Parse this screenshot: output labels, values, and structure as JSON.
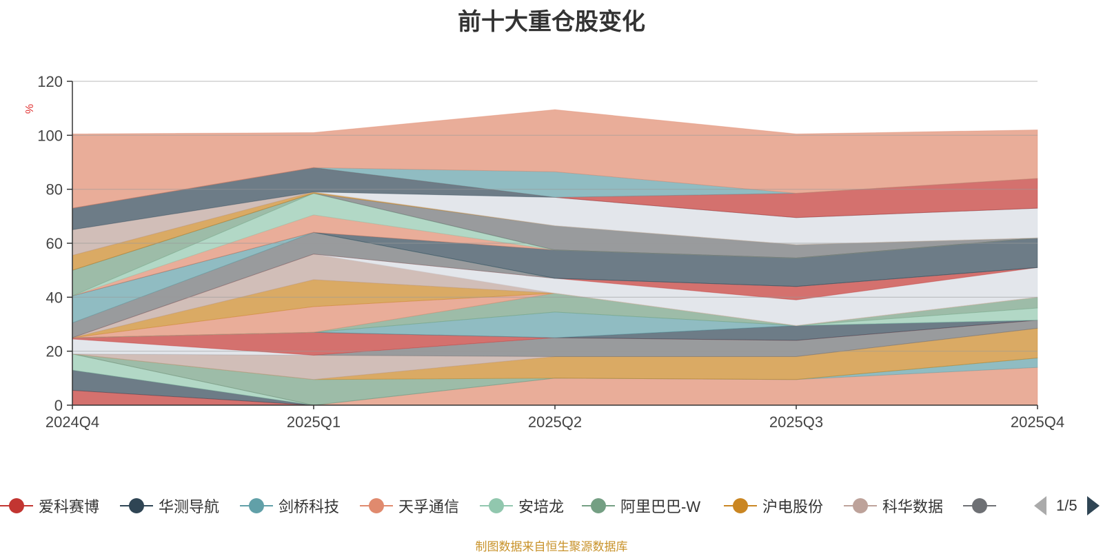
{
  "chart_data": {
    "type": "area",
    "title": "前十大重仓股变化",
    "ylabel": "%",
    "categories": [
      "2024Q4",
      "2025Q1",
      "2025Q2",
      "2025Q3",
      "2025Q4"
    ],
    "yticks": [
      "0",
      "20",
      "40",
      "60",
      "80",
      "100",
      "120"
    ],
    "ylim": [
      0,
      120
    ],
    "grid": true,
    "stacked": true,
    "legend_position": "bottom",
    "series": [
      {
        "name": "爱科赛博",
        "color": "#c23531",
        "values": [
          5.5,
          0,
          0,
          0,
          0
        ]
      },
      {
        "name": "华测导航",
        "color": "#2f4554",
        "values": [
          7.5,
          0,
          0,
          0,
          0
        ]
      },
      {
        "name": "安培龙",
        "color": "#91c7ae",
        "values": [
          6,
          0,
          0,
          0,
          0
        ]
      },
      {
        "name": "",
        "color": "#e08a6e",
        "values": [
          0,
          0,
          10,
          9.5,
          14
        ]
      },
      {
        "name": "",
        "color": "#61a0a8",
        "values": [
          0,
          0,
          0,
          0,
          3.5
        ]
      },
      {
        "name": "",
        "color": "#749f83",
        "values": [
          0,
          9.5,
          0,
          0,
          0
        ]
      },
      {
        "name": "",
        "color": "#ca8622",
        "values": [
          0,
          0,
          8,
          8.5,
          11
        ]
      },
      {
        "name": "",
        "color": "#bda29a",
        "values": [
          0,
          9,
          0,
          0,
          0
        ]
      },
      {
        "name": "",
        "color": "#6e7074",
        "values": [
          0,
          0,
          7,
          6,
          3
        ]
      },
      {
        "name": "",
        "color": "#d7dce3",
        "values": [
          5.5,
          0,
          0,
          0,
          0
        ]
      },
      {
        "name": "",
        "color": "#c23531",
        "values": [
          0.5,
          8.5,
          0,
          0,
          0
        ]
      },
      {
        "name": "",
        "color": "#2f4554",
        "values": [
          0,
          0,
          0,
          5.5,
          0
        ]
      },
      {
        "name": "",
        "color": "#61a0a8",
        "values": [
          0,
          0,
          9.5,
          0,
          0
        ]
      },
      {
        "name": "",
        "color": "#91c7ae",
        "values": [
          0,
          0,
          0,
          0,
          4.5
        ]
      },
      {
        "name": "",
        "color": "#749f83",
        "values": [
          0,
          0,
          7,
          0,
          4
        ]
      },
      {
        "name": "",
        "color": "#e08a6e",
        "values": [
          0,
          9.5,
          0,
          0,
          0
        ]
      },
      {
        "name": "",
        "color": "#ca8622",
        "values": [
          0,
          10,
          0,
          0,
          0
        ]
      },
      {
        "name": "",
        "color": "#bda29a",
        "values": [
          0,
          9.5,
          0,
          0,
          0
        ]
      },
      {
        "name": "",
        "color": "#d7dce3",
        "values": [
          0,
          0,
          5.5,
          9.5,
          11
        ]
      },
      {
        "name": "",
        "color": "#c23531",
        "values": [
          0,
          0,
          0,
          5,
          0
        ]
      },
      {
        "name": "",
        "color": "#6e7074",
        "values": [
          5.5,
          8,
          0,
          0,
          0
        ]
      },
      {
        "name": "",
        "color": "#61a0a8",
        "values": [
          10,
          0,
          0,
          0,
          0
        ]
      },
      {
        "name": "",
        "color": "#2f4554",
        "values": [
          0,
          0,
          10.5,
          10.5,
          11
        ]
      },
      {
        "name": "",
        "color": "#e08a6e",
        "values": [
          0,
          6.5,
          0,
          0,
          0
        ]
      },
      {
        "name": "",
        "color": "#91c7ae",
        "values": [
          0,
          8,
          0,
          0,
          0
        ]
      },
      {
        "name": "",
        "color": "#749f83",
        "values": [
          9.5,
          0,
          0,
          0,
          0
        ]
      },
      {
        "name": "",
        "color": "#6e7074",
        "values": [
          0,
          0,
          9,
          5,
          0
        ]
      },
      {
        "name": "",
        "color": "#ca8622",
        "values": [
          5.5,
          0.5,
          0,
          0,
          0
        ]
      },
      {
        "name": "",
        "color": "#bda29a",
        "values": [
          9.5,
          0,
          0,
          0,
          0
        ]
      },
      {
        "name": "",
        "color": "#d7dce3",
        "values": [
          0,
          0,
          10.5,
          10,
          11
        ]
      },
      {
        "name": "",
        "color": "#2f4554",
        "values": [
          8,
          9,
          0,
          0,
          0
        ]
      },
      {
        "name": "",
        "color": "#c23531",
        "values": [
          0,
          0,
          0,
          9,
          11
        ]
      },
      {
        "name": "",
        "color": "#61a0a8",
        "values": [
          0,
          0,
          9.5,
          0,
          0
        ]
      },
      {
        "name": "",
        "color": "#e08a6e",
        "values": [
          27.5,
          13,
          23,
          22,
          18
        ]
      }
    ],
    "legend": [
      {
        "name": "爱科赛博",
        "color": "#c23531"
      },
      {
        "name": "华测导航",
        "color": "#2f4554"
      },
      {
        "name": "剑桥科技",
        "color": "#61a0a8"
      },
      {
        "name": "天孚通信",
        "color": "#e08a6e"
      },
      {
        "name": "安培龙",
        "color": "#91c7ae"
      },
      {
        "name": "阿里巴巴-W",
        "color": "#749f83"
      },
      {
        "name": "沪电股份",
        "color": "#ca8622"
      },
      {
        "name": "科华数据",
        "color": "#bda29a"
      },
      {
        "name": "",
        "color": "#6e7074"
      }
    ]
  },
  "pager": {
    "text": "1/5"
  },
  "source": "制图数据来自恒生聚源数据库"
}
